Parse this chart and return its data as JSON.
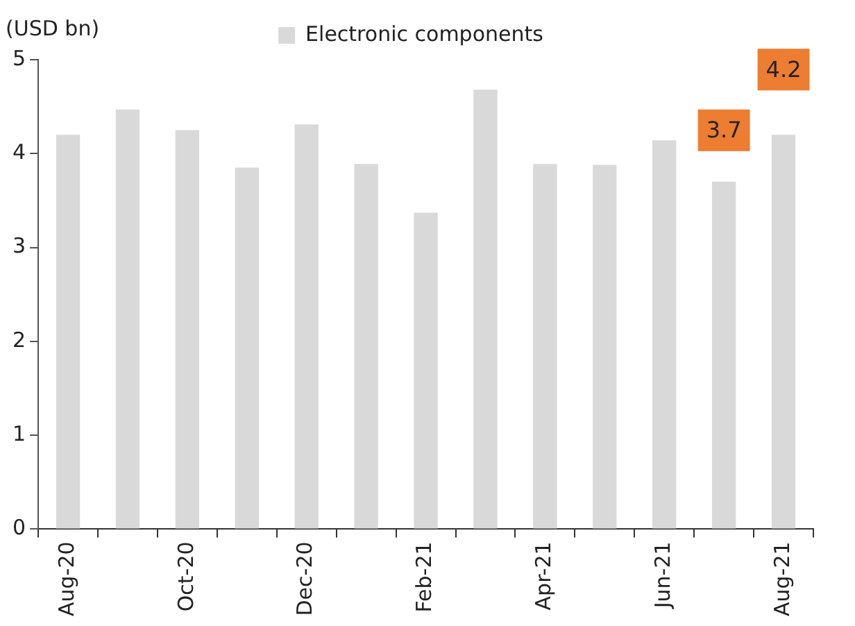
{
  "chart_data": {
    "type": "bar",
    "ylabel": "(USD bn)",
    "categories": [
      "Aug-20",
      null,
      "Oct-20",
      null,
      "Dec-20",
      null,
      "Feb-21",
      null,
      "Apr-21",
      null,
      "Jun-21",
      null,
      "Aug-21"
    ],
    "series": [
      {
        "name": "Electronic components",
        "color": "#d9d9d9",
        "values": [
          4.2,
          4.47,
          4.25,
          3.85,
          4.31,
          3.89,
          3.37,
          4.68,
          3.89,
          3.88,
          4.14,
          3.7,
          4.2
        ],
        "value_labels": [
          null,
          null,
          null,
          null,
          null,
          null,
          null,
          null,
          null,
          null,
          null,
          "3.7",
          "4.2"
        ]
      }
    ],
    "ylim": [
      0,
      5
    ],
    "yticks": [
      0,
      1,
      2,
      3,
      4,
      5
    ],
    "grid": false,
    "legend": "top"
  }
}
